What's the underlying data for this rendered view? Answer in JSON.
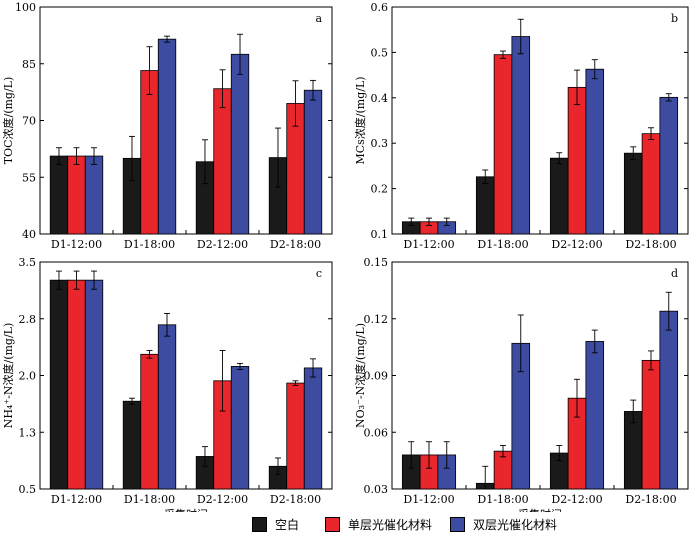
{
  "colors": {
    "blank": "#1a1a1a",
    "single": "#e8262b",
    "double": "#3d4ba0"
  },
  "legend": [
    {
      "key": "blank",
      "label": "空白"
    },
    {
      "key": "single",
      "label": "单层光催化材料"
    },
    {
      "key": "double",
      "label": "双层光催化材料"
    }
  ],
  "chart_data": [
    {
      "type": "bar",
      "panel": "a",
      "ylabel": "TOC浓度/(mg/L)",
      "ylim": [
        40,
        100
      ],
      "yticks": [
        "40",
        "55",
        "70",
        "85",
        "100"
      ],
      "categories": [
        "D1-12:00",
        "D1-18:00",
        "D2-12:00",
        "D2-18:00"
      ],
      "xlabel": "",
      "series": [
        {
          "key": "blank",
          "values": [
            60.6,
            60.0,
            59.1,
            60.2
          ],
          "errors": [
            2.2,
            5.8,
            5.8,
            7.8
          ]
        },
        {
          "key": "single",
          "values": [
            60.6,
            83.2,
            78.4,
            74.5
          ],
          "errors": [
            2.2,
            6.3,
            5.0,
            6.0
          ]
        },
        {
          "key": "double",
          "values": [
            60.6,
            91.5,
            87.5,
            78.0
          ],
          "errors": [
            2.2,
            0.8,
            5.3,
            2.6
          ]
        }
      ]
    },
    {
      "type": "bar",
      "panel": "b",
      "ylabel": "MCs浓度/(mg/L)",
      "ylim": [
        0.1,
        0.6
      ],
      "yticks": [
        "0.1",
        "0.2",
        "0.3",
        "0.4",
        "0.5",
        "0.6"
      ],
      "categories": [
        "D1-12:00",
        "D1-18:00",
        "D2-12:00",
        "D2-18:00"
      ],
      "xlabel": "",
      "series": [
        {
          "key": "blank",
          "values": [
            0.127,
            0.226,
            0.267,
            0.278
          ],
          "errors": [
            0.008,
            0.015,
            0.012,
            0.014
          ]
        },
        {
          "key": "single",
          "values": [
            0.127,
            0.495,
            0.423,
            0.321
          ],
          "errors": [
            0.008,
            0.008,
            0.038,
            0.013
          ]
        },
        {
          "key": "double",
          "values": [
            0.127,
            0.535,
            0.463,
            0.401
          ],
          "errors": [
            0.008,
            0.038,
            0.021,
            0.008
          ]
        }
      ]
    },
    {
      "type": "bar",
      "panel": "c",
      "ylabel": "NH₄⁺-N浓度/(mg/L)",
      "ylim": [
        0.5,
        3.5
      ],
      "yticks": [
        "0.5",
        "1.3",
        "2.0",
        "2.8",
        "3.5"
      ],
      "categories": [
        "D1-12:00",
        "D1-18:00",
        "D2-12:00",
        "D2-18:00"
      ],
      "xlabel": "采集时间",
      "series": [
        {
          "key": "blank",
          "values": [
            3.26,
            1.66,
            0.93,
            0.8
          ],
          "errors": [
            0.12,
            0.04,
            0.13,
            0.11
          ]
        },
        {
          "key": "single",
          "values": [
            3.26,
            2.28,
            1.93,
            1.9
          ],
          "errors": [
            0.12,
            0.05,
            0.4,
            0.03
          ]
        },
        {
          "key": "double",
          "values": [
            3.26,
            2.67,
            2.12,
            2.1
          ],
          "errors": [
            0.12,
            0.15,
            0.04,
            0.12
          ]
        }
      ]
    },
    {
      "type": "bar",
      "panel": "d",
      "ylabel": "NO₃⁻-N浓度/(mg/L)",
      "ylim": [
        0.03,
        0.15
      ],
      "yticks": [
        "0.03",
        "0.06",
        "0.09",
        "0.12",
        "0.15"
      ],
      "categories": [
        "D1-12:00",
        "D1-18:00",
        "D2-12:00",
        "D2-18:00"
      ],
      "xlabel": "采集时间",
      "series": [
        {
          "key": "blank",
          "values": [
            0.048,
            0.033,
            0.049,
            0.071
          ],
          "errors": [
            0.007,
            0.009,
            0.004,
            0.006
          ]
        },
        {
          "key": "single",
          "values": [
            0.048,
            0.05,
            0.078,
            0.098
          ],
          "errors": [
            0.007,
            0.003,
            0.01,
            0.005
          ]
        },
        {
          "key": "double",
          "values": [
            0.048,
            0.107,
            0.108,
            0.124
          ],
          "errors": [
            0.007,
            0.015,
            0.006,
            0.01
          ]
        }
      ]
    }
  ]
}
